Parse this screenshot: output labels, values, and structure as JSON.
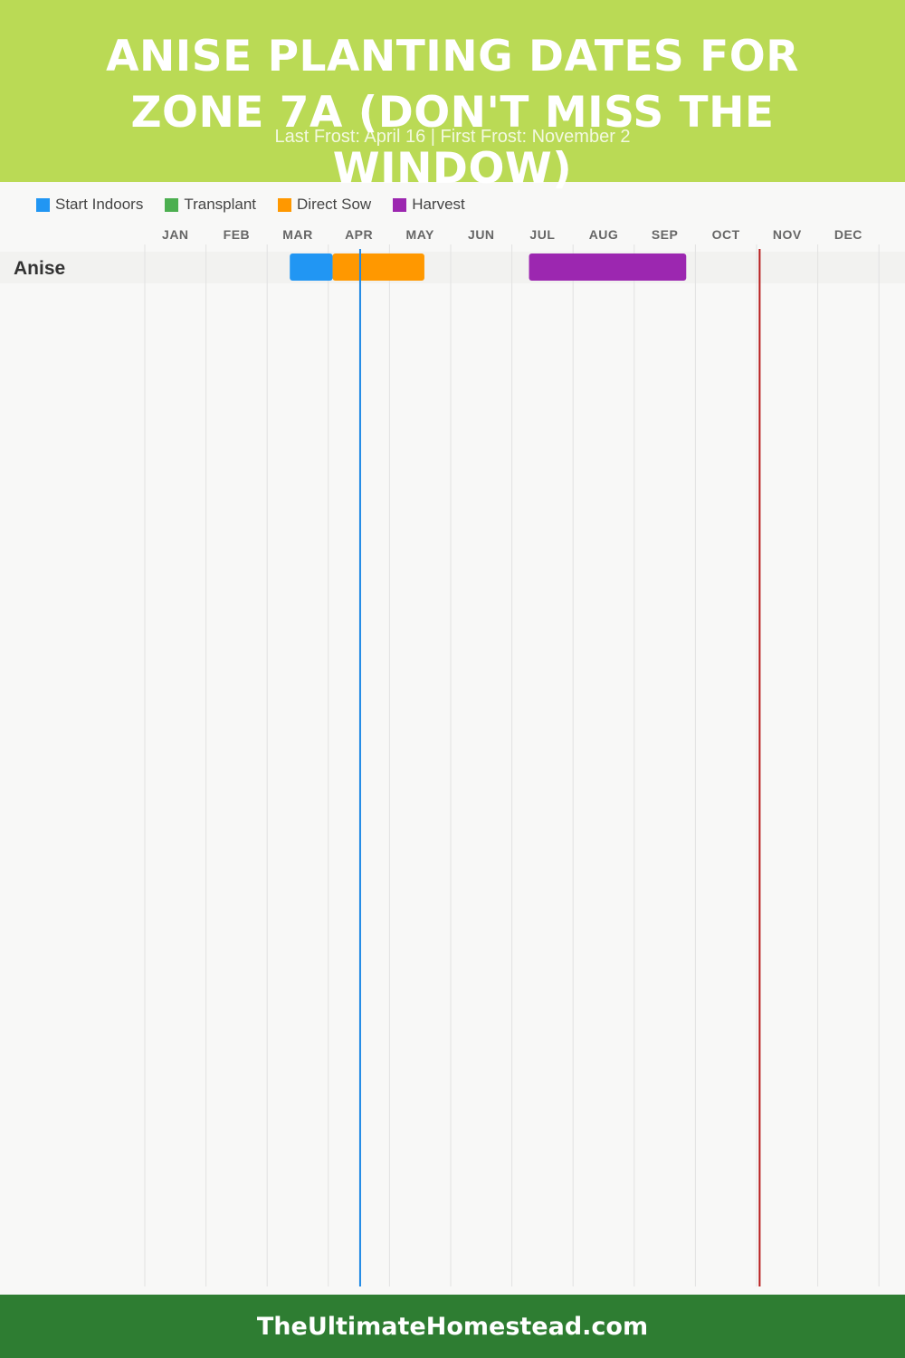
{
  "header": {
    "title": "ANISE PLANTING DATES FOR ZONE 7A (DON'T MISS THE WINDOW)",
    "subtitle": "Last Frost: April 16 | First Frost: November 2",
    "background": "#bada55"
  },
  "footer": {
    "text": "TheUltimateHomestead.com",
    "background": "#2e7d32"
  },
  "chart_data": {
    "type": "gantt",
    "months": [
      "JAN",
      "FEB",
      "MAR",
      "APR",
      "MAY",
      "JUN",
      "JUL",
      "AUG",
      "SEP",
      "OCT",
      "NOV",
      "DEC"
    ],
    "legend": [
      {
        "label": "Start Indoors",
        "color": "#2196f3"
      },
      {
        "label": "Transplant",
        "color": "#4caf50"
      },
      {
        "label": "Direct Sow",
        "color": "#ff9800"
      },
      {
        "label": "Harvest",
        "color": "#9c27b0"
      }
    ],
    "rows": [
      {
        "plant": "Anise",
        "bars": [
          {
            "phase": "Start Indoors",
            "start": 2.37,
            "end": 3.07,
            "color": "#2196f3"
          },
          {
            "phase": "Direct Sow",
            "start": 3.07,
            "end": 4.57,
            "color": "#ff9800"
          },
          {
            "phase": "Harvest",
            "start": 6.28,
            "end": 8.85,
            "color": "#9c27b0"
          }
        ]
      }
    ],
    "markers": [
      {
        "name": "last-frost",
        "month_value": 3.52,
        "color": "#1e88e5"
      },
      {
        "name": "first-frost",
        "month_value": 10.05,
        "color": "#b71c1c"
      }
    ],
    "grid": true,
    "legend_position": "top-left"
  }
}
